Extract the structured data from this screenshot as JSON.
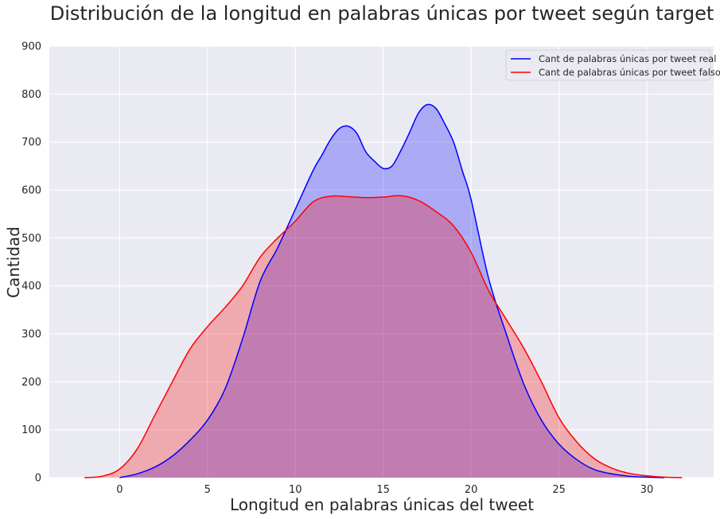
{
  "chart_data": {
    "type": "area",
    "title": "Distribución de la longitud en palabras únicas por tweet según target",
    "xlabel": "Longitud en palabras únicas del tweet",
    "ylabel": "Cantidad",
    "xlim": [
      -4,
      33.8
    ],
    "ylim": [
      0,
      900
    ],
    "xticks": [
      0,
      5,
      10,
      15,
      20,
      25,
      30
    ],
    "yticks": [
      0,
      100,
      200,
      300,
      400,
      500,
      600,
      700,
      800,
      900
    ],
    "grid": true,
    "legend_position": "top-right",
    "background": "#eaeaf2",
    "series": [
      {
        "name": "Cant de palabras únicas por tweet real",
        "color": "#0000ff",
        "fill": "#aaaaf5",
        "x": [
          0,
          1,
          2,
          3,
          4,
          5,
          6,
          7,
          8,
          9,
          10,
          11,
          11.5,
          12,
          12.5,
          13,
          13.5,
          14,
          14.5,
          15,
          15.5,
          16,
          16.5,
          17,
          17.5,
          18,
          18.5,
          19,
          19.5,
          20,
          21,
          22,
          23,
          24,
          25,
          26,
          27,
          28,
          29,
          30,
          31
        ],
        "y": [
          0,
          8,
          22,
          45,
          78,
          120,
          185,
          290,
          410,
          480,
          560,
          640,
          672,
          705,
          728,
          733,
          718,
          680,
          660,
          645,
          650,
          682,
          720,
          760,
          778,
          770,
          738,
          700,
          640,
          580,
          415,
          300,
          195,
          120,
          70,
          38,
          17,
          8,
          3,
          1,
          0
        ]
      },
      {
        "name": "Cant de palabras únicas por tweet falso",
        "color": "#ff0000",
        "fill": "#f2a9b0",
        "x": [
          -2,
          -1,
          0,
          1,
          2,
          3,
          4,
          5,
          6,
          7,
          8,
          9,
          10,
          11,
          12,
          13,
          14,
          15,
          16,
          17,
          18,
          19,
          20,
          21,
          22,
          23,
          24,
          25,
          26,
          27,
          28,
          29,
          30,
          31,
          32
        ],
        "y": [
          0,
          3,
          18,
          60,
          130,
          200,
          268,
          315,
          355,
          400,
          460,
          500,
          535,
          575,
          587,
          586,
          584,
          585,
          588,
          578,
          555,
          525,
          470,
          390,
          330,
          270,
          200,
          125,
          75,
          40,
          20,
          9,
          4,
          1,
          0
        ]
      }
    ]
  }
}
